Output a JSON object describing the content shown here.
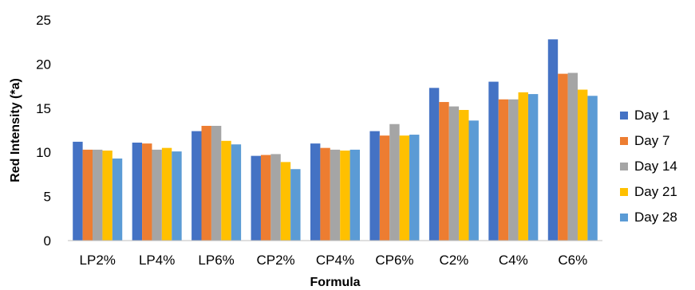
{
  "chart_data": {
    "type": "bar",
    "title": "",
    "xlabel": "Formula",
    "ylabel": "Red Intensity (*a)",
    "ylim": [
      0,
      25
    ],
    "yticks": [
      0,
      5,
      10,
      15,
      20,
      25
    ],
    "grid": false,
    "legend_position": "right",
    "categories": [
      "LP2%",
      "LP4%",
      "LP6%",
      "CP2%",
      "CP4%",
      "CP6%",
      "C2%",
      "C4%",
      "C6%"
    ],
    "series": [
      {
        "name": "Day 1",
        "color": "#4472C4",
        "values": [
          11.2,
          11.1,
          12.4,
          9.6,
          11.0,
          12.4,
          17.3,
          18.0,
          22.8
        ]
      },
      {
        "name": "Day 7",
        "color": "#ED7D31",
        "values": [
          10.3,
          11.0,
          13.0,
          9.7,
          10.5,
          11.9,
          15.7,
          16.0,
          18.9
        ]
      },
      {
        "name": "Day 14",
        "color": "#A5A5A5",
        "values": [
          10.3,
          10.3,
          13.0,
          9.8,
          10.3,
          13.2,
          15.2,
          16.0,
          19.0
        ]
      },
      {
        "name": "Day 21",
        "color": "#FFC000",
        "values": [
          10.2,
          10.5,
          11.3,
          8.9,
          10.2,
          11.9,
          14.8,
          16.8,
          17.1
        ]
      },
      {
        "name": "Day 28",
        "color": "#5B9BD5",
        "values": [
          9.3,
          10.1,
          10.9,
          8.1,
          10.3,
          12.0,
          13.6,
          16.6,
          16.4
        ]
      }
    ]
  }
}
